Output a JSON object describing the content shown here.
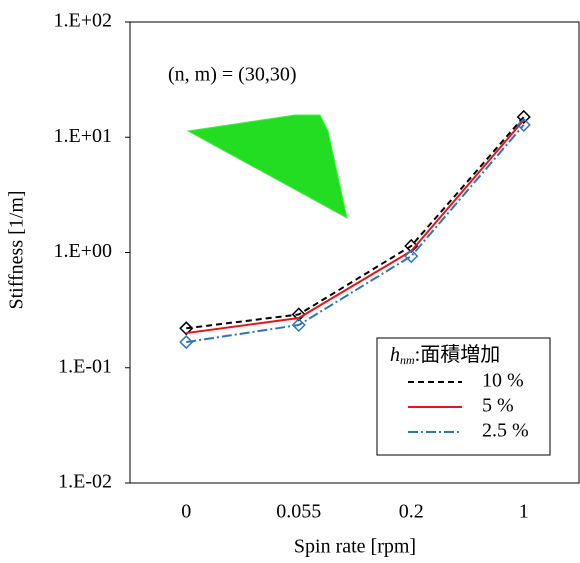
{
  "chart_data": {
    "type": "line",
    "x_label": "Spin rate [rpm]",
    "y_label": "Stiffness [1/m]",
    "annotation": "(n, m) = (30,30)",
    "log_scale_y": true,
    "categories": [
      "0",
      "0.055",
      "0.2",
      "1"
    ],
    "ylim": [
      0.01,
      100
    ],
    "yticks": [
      {
        "value": 0.01,
        "label": "1.E-02"
      },
      {
        "value": 0.1,
        "label": "1.E-01"
      },
      {
        "value": 1,
        "label": "1.E+00"
      },
      {
        "value": 10,
        "label": "1.E+01"
      },
      {
        "value": 100,
        "label": "1.E+02"
      }
    ],
    "legend_title": {
      "symbol": "h",
      "subscript": "nm",
      "text": ":面積増加"
    },
    "legend_position": "lower right",
    "series": [
      {
        "name": "10 %",
        "color": "#000000",
        "dash": "6,4",
        "marker": "diamond",
        "values": [
          0.22,
          0.29,
          1.14,
          15
        ]
      },
      {
        "name": "5 %",
        "color": "#e8141b",
        "dash": "none",
        "marker": "none",
        "values": [
          0.2,
          0.27,
          1.03,
          14.1
        ]
      },
      {
        "name": "2.5 %",
        "color": "#2e75b6",
        "dash": "10,3,2,3",
        "marker": "diamond",
        "values": [
          0.167,
          0.235,
          0.93,
          12.8
        ]
      }
    ]
  }
}
